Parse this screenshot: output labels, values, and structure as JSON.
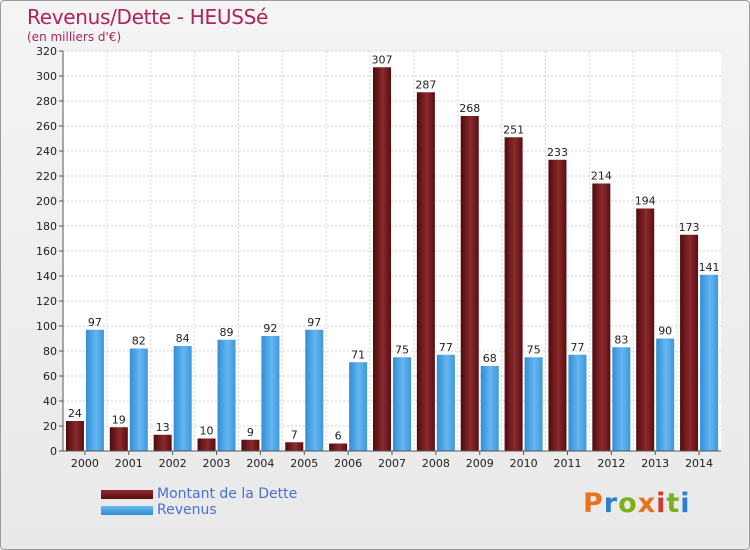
{
  "header": {
    "title": "Revenus/Dette - HEUSSé",
    "subtitle": "(en milliers d'€)"
  },
  "legend": {
    "dette_label": "Montant de la Dette",
    "revenus_label": "Revenus"
  },
  "logo": {
    "text": "Proxiti",
    "chars": [
      "P",
      "r",
      "o",
      "x",
      "i",
      "t",
      "i"
    ]
  },
  "colors": {
    "dette": "#6e1518",
    "revenus": "#4aa3e6",
    "title": "#b0235a",
    "legend_text": "#4a6fd6",
    "logo": [
      "#e8731e",
      "#2c7fd0",
      "#7bb21c",
      "#e8731e",
      "#d2392d",
      "#7bb21c",
      "#2c7fd0"
    ]
  },
  "chart_data": {
    "type": "bar",
    "title": "Revenus/Dette - HEUSSé",
    "ylabel": "(en milliers d'€)",
    "xlabel": "",
    "ylim": [
      0,
      320
    ],
    "ytick_step": 20,
    "grid": true,
    "categories": [
      "2000",
      "2001",
      "2002",
      "2003",
      "2004",
      "2005",
      "2006",
      "2007",
      "2008",
      "2009",
      "2010",
      "2011",
      "2012",
      "2013",
      "2014"
    ],
    "series": [
      {
        "name": "Montant de la Dette",
        "values": [
          24,
          19,
          13,
          10,
          9,
          7,
          6,
          307,
          287,
          268,
          251,
          233,
          214,
          194,
          173
        ]
      },
      {
        "name": "Revenus",
        "values": [
          97,
          82,
          84,
          89,
          92,
          97,
          71,
          75,
          77,
          68,
          75,
          77,
          83,
          90,
          141
        ]
      }
    ]
  }
}
